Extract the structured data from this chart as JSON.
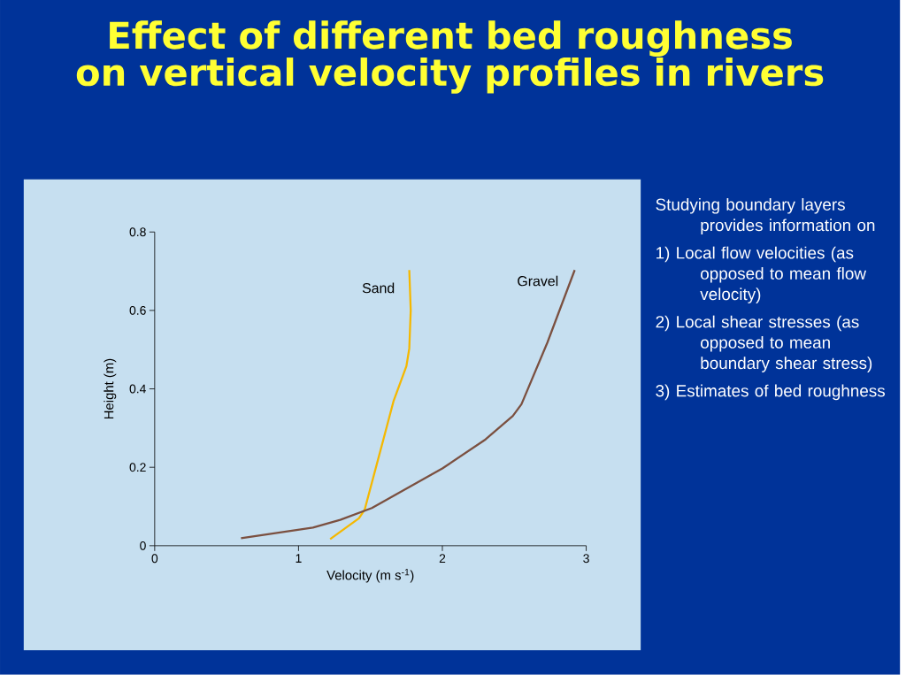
{
  "chart_data": {
    "type": "line",
    "title": "Effect of different bed roughness on vertical velocity profiles in rivers",
    "xlabel": "Velocity (m s$^{-1}$)",
    "ylabel": "Height (m)",
    "xlim": [
      0,
      3
    ],
    "ylim": [
      0,
      0.8
    ],
    "xticks": [
      0,
      1,
      2,
      3
    ],
    "yticks": [
      0,
      0.2,
      0.4,
      0.6,
      0.8
    ],
    "series": [
      {
        "name": "Sand",
        "color": "#f5b800",
        "x": [
          1.22,
          1.42,
          1.46,
          1.59,
          1.66,
          1.75,
          1.77,
          1.78,
          1.77
        ],
        "values": [
          0.017,
          0.07,
          0.092,
          0.271,
          0.368,
          0.458,
          0.503,
          0.6,
          0.703
        ]
      },
      {
        "name": "Gravel",
        "color": "#7b5040",
        "x": [
          0.6,
          1.1,
          1.29,
          1.51,
          2.0,
          2.3,
          2.49,
          2.55,
          2.73,
          2.92
        ],
        "values": [
          0.019,
          0.046,
          0.066,
          0.096,
          0.197,
          0.271,
          0.331,
          0.361,
          0.518,
          0.703
        ]
      }
    ],
    "annotations": [
      "Studying boundary layers provides information on",
      "1) Local flow velocities (as opposed to mean flow velocity)",
      "2) Local shear stresses (as opposed to mean boundary shear stress)",
      "3) Estimates of bed roughness"
    ]
  }
}
